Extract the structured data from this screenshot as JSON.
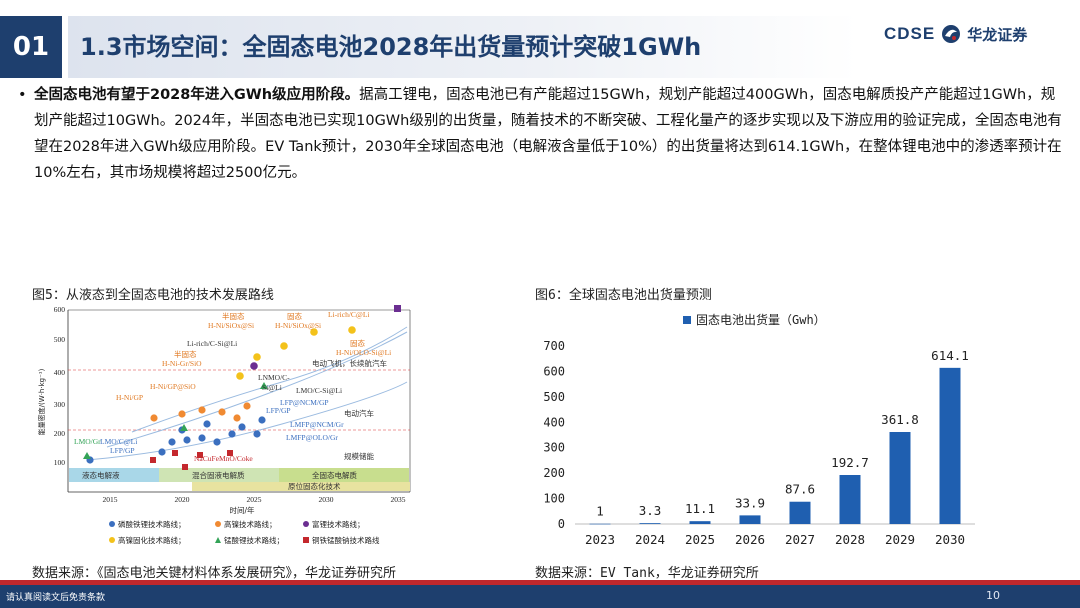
{
  "header": {
    "num": "01",
    "title": "1.3市场空间：全固态电池2028年出货量预计突破1GWh",
    "logo_en": "CDSE",
    "logo_cn": "华龙证券"
  },
  "body": {
    "bullet": "•",
    "bold": "全固态电池有望于2028年进入GWh级应用阶段。",
    "rest": "据高工锂电，固态电池已有产能超过15GWh，规划产能超过400GWh，固态电解质投产产能超过1GWh，规划产能超过10GWh。2024年，半固态电池已实现10GWh级别的出货量，随着技术的不断突破、工程化量产的逐步实现以及下游应用的验证完成，全固态电池有望在2028年进入GWh级应用阶段。EV Tank预计，2030年全球固态电池（电解液含量低于10%）的出货量将达到614.1GWh，在整体锂电池中的渗透率预计在10%左右，其市场规模将超过2500亿元。"
  },
  "fig5": {
    "caption": "图5：从液态到全固态电池的技术发展路线",
    "source": "数据来源：《固态电池关键材料体系发展研究》，华龙证券研究所",
    "ylabel": "能量密度/(W·h·kg⁻¹)",
    "xlabel": "时间/年",
    "yticks": [
      "100",
      "200",
      "300",
      "400",
      "500",
      "600"
    ],
    "xticks": [
      "2015",
      "2020",
      "2025",
      "2030",
      "2035"
    ],
    "bands": [
      "液态电解液",
      "混合固液电解质",
      "全固态电解质",
      "原位固态化技术"
    ],
    "labels": {
      "l1": "Li-rich/C@Li",
      "l2": "半固态",
      "l3": "H-Ni/SiOx@Si",
      "l4": "固态",
      "l5": "H-Ni/SiOx@Si",
      "l6": "Li-rich/C-Si@Li",
      "l7": "固态",
      "l8": "H-Ni/OLO-Si@Li",
      "l9": "半固态",
      "l10": "H-Ni-Gr/SiO",
      "l11": "电动飞机，长续航汽车",
      "l12": "H-Ni/GP@SiO",
      "l13": "LNMO/C-",
      "l14": "Si@Li",
      "l15": "H-Ni/GP",
      "l16": "LMO/C-Si@Li",
      "l17": "LFP@NCM/GP",
      "l18": "LFP/GP",
      "l19": "电动汽车",
      "l20": "LMFP@NCM/Gr",
      "l21": "LMO/Gr",
      "l22": "LMO/C@Li",
      "l23": "LFP/GP",
      "l24": "LMFP@OLO/Gr",
      "l25": "NaCuFeMnO/Coke",
      "l26": "规模储能"
    },
    "legend": [
      "磷酸铁锂技术路线；",
      "高镍技术路线；",
      "富锂技术路线；",
      "高镍固化技术路线；",
      "锰酸锂技术路线；",
      "铜铁锰酸钠技术路线"
    ]
  },
  "fig6": {
    "caption": "图6：全球固态电池出货量预测",
    "source": "数据来源：EV Tank，华龙证券研究所"
  },
  "chart_data": {
    "type": "bar",
    "title": "",
    "legend": "固态电池出货量（Gwh）",
    "categories": [
      "2023",
      "2024",
      "2025",
      "2026",
      "2027",
      "2028",
      "2029",
      "2030"
    ],
    "values": [
      1,
      3.3,
      11.1,
      33.9,
      87.6,
      192.7,
      361.8,
      614.1
    ],
    "value_labels": [
      "1",
      "3.3",
      "11.1",
      "33.9",
      "87.6",
      "192.7",
      "361.8",
      "614.1"
    ],
    "yticks": [
      "0",
      "100",
      "200",
      "300",
      "400",
      "500",
      "600",
      "700"
    ],
    "ylim": [
      0,
      700
    ],
    "grid": false,
    "legend_position": "top",
    "color": "#1f5fb0"
  },
  "footer": {
    "note": "请认真阅读文后免责条款",
    "page": "10"
  }
}
